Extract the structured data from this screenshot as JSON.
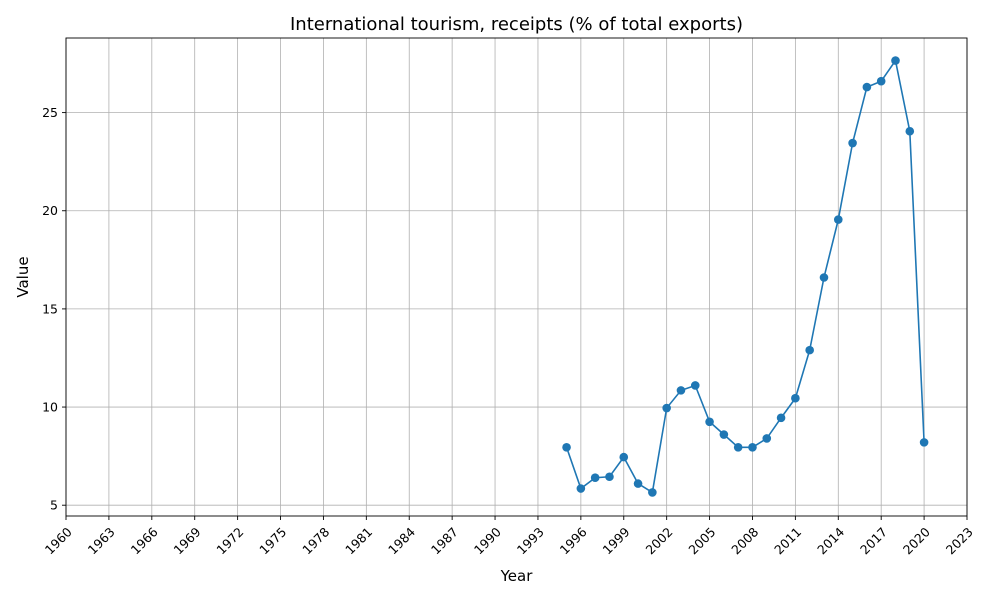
{
  "chart_data": {
    "type": "line",
    "title": "International tourism, receipts (% of total exports)",
    "xlabel": "Year",
    "ylabel": "Value",
    "xlim": [
      1960,
      2023
    ],
    "ylim": [
      4.45,
      28.8
    ],
    "x_ticks": [
      1960,
      1963,
      1966,
      1969,
      1972,
      1975,
      1978,
      1981,
      1984,
      1987,
      1990,
      1993,
      1996,
      1999,
      2002,
      2005,
      2008,
      2011,
      2014,
      2017,
      2020,
      2023
    ],
    "y_ticks": [
      5,
      10,
      15,
      20,
      25
    ],
    "grid": true,
    "line_color": "#1f77b4",
    "marker": "circle",
    "series": [
      {
        "x": [
          1995,
          1996,
          1997,
          1998,
          1999,
          2000,
          2001,
          2002,
          2003,
          2004,
          2005,
          2006,
          2007,
          2008,
          2009,
          2010,
          2011,
          2012,
          2013,
          2014,
          2015,
          2016,
          2017,
          2018,
          2019,
          2020
        ],
        "values": [
          7.95,
          5.85,
          6.4,
          6.45,
          7.45,
          6.1,
          5.65,
          9.95,
          10.85,
          11.1,
          9.25,
          8.6,
          7.95,
          7.95,
          8.4,
          9.45,
          10.45,
          12.9,
          16.6,
          19.55,
          23.45,
          26.3,
          26.6,
          27.65,
          24.05,
          8.2
        ]
      }
    ]
  }
}
